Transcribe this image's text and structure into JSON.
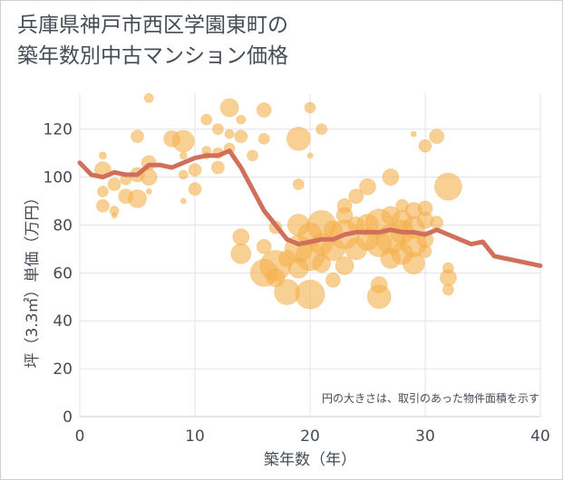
{
  "chart_data": {
    "type": "scatter",
    "title_lines": [
      "兵庫県神戸市西区学園東町の",
      "築年数別中古マンション価格"
    ],
    "xlabel": "築年数（年）",
    "ylabel": "坪（3.3㎡）単価（万円）",
    "annotation": "円の大きさは、取引のあった物件面積を示す",
    "xlim": [
      0,
      40
    ],
    "ylim": [
      0,
      135
    ],
    "xticks": [
      0,
      10,
      20,
      30,
      40
    ],
    "yticks": [
      0,
      20,
      40,
      60,
      80,
      100,
      120
    ],
    "grid": true,
    "colors": {
      "bubble": "#f5b04d",
      "trend": "#d0705a",
      "grid": "#dfe3ea",
      "text": "#444c55"
    },
    "trend_line": {
      "x": [
        0,
        1,
        2,
        3,
        4,
        5,
        6,
        7,
        8,
        9,
        10,
        11,
        12,
        13,
        14,
        15,
        16,
        17,
        18,
        19,
        20,
        21,
        22,
        23,
        24,
        25,
        26,
        27,
        28,
        29,
        30,
        31,
        32,
        33,
        34,
        35,
        36,
        37,
        38,
        39,
        40
      ],
      "y": [
        106,
        101,
        100,
        102,
        101,
        101,
        105,
        105,
        104,
        106,
        108,
        109,
        109,
        111,
        104,
        95,
        86,
        80,
        74,
        72,
        73,
        74,
        74,
        76,
        77,
        77,
        77,
        78,
        77,
        77,
        76,
        78,
        76,
        74,
        72,
        73,
        67,
        66,
        65,
        64,
        63
      ]
    },
    "bubbles": [
      {
        "x": 2,
        "y": 109,
        "s": 4
      },
      {
        "x": 2,
        "y": 103,
        "s": 9
      },
      {
        "x": 2,
        "y": 94,
        "s": 6
      },
      {
        "x": 2,
        "y": 88,
        "s": 7
      },
      {
        "x": 3,
        "y": 86,
        "s": 5
      },
      {
        "x": 3,
        "y": 97,
        "s": 7
      },
      {
        "x": 3,
        "y": 84,
        "s": 3
      },
      {
        "x": 4,
        "y": 92,
        "s": 8
      },
      {
        "x": 4,
        "y": 99,
        "s": 6
      },
      {
        "x": 5,
        "y": 117,
        "s": 7
      },
      {
        "x": 5,
        "y": 91,
        "s": 10
      },
      {
        "x": 5,
        "y": 101,
        "s": 8
      },
      {
        "x": 6,
        "y": 133,
        "s": 5
      },
      {
        "x": 6,
        "y": 106,
        "s": 8
      },
      {
        "x": 6,
        "y": 100,
        "s": 9
      },
      {
        "x": 6,
        "y": 94,
        "s": 3
      },
      {
        "x": 8,
        "y": 116,
        "s": 9
      },
      {
        "x": 9,
        "y": 115,
        "s": 12
      },
      {
        "x": 9,
        "y": 109,
        "s": 4
      },
      {
        "x": 9,
        "y": 101,
        "s": 5
      },
      {
        "x": 9,
        "y": 90,
        "s": 3
      },
      {
        "x": 10,
        "y": 103,
        "s": 7
      },
      {
        "x": 10,
        "y": 95,
        "s": 7
      },
      {
        "x": 11,
        "y": 124,
        "s": 6
      },
      {
        "x": 11,
        "y": 111,
        "s": 5
      },
      {
        "x": 11,
        "y": 109,
        "s": 4
      },
      {
        "x": 12,
        "y": 120,
        "s": 6
      },
      {
        "x": 12,
        "y": 110,
        "s": 6
      },
      {
        "x": 12,
        "y": 104,
        "s": 7
      },
      {
        "x": 13,
        "y": 129,
        "s": 10
      },
      {
        "x": 13,
        "y": 118,
        "s": 5
      },
      {
        "x": 13,
        "y": 112,
        "s": 6
      },
      {
        "x": 14,
        "y": 124,
        "s": 5
      },
      {
        "x": 14,
        "y": 117,
        "s": 7
      },
      {
        "x": 15,
        "y": 109,
        "s": 6
      },
      {
        "x": 16,
        "y": 128,
        "s": 8
      },
      {
        "x": 16,
        "y": 116,
        "s": 6
      },
      {
        "x": 14,
        "y": 75,
        "s": 9
      },
      {
        "x": 14,
        "y": 68,
        "s": 11
      },
      {
        "x": 16,
        "y": 60,
        "s": 15
      },
      {
        "x": 16,
        "y": 71,
        "s": 8
      },
      {
        "x": 17,
        "y": 63,
        "s": 17
      },
      {
        "x": 17,
        "y": 58,
        "s": 10
      },
      {
        "x": 17,
        "y": 79,
        "s": 7
      },
      {
        "x": 18,
        "y": 52,
        "s": 14
      },
      {
        "x": 18,
        "y": 66,
        "s": 9
      },
      {
        "x": 19,
        "y": 116,
        "s": 13
      },
      {
        "x": 19,
        "y": 97,
        "s": 6
      },
      {
        "x": 19,
        "y": 80,
        "s": 12
      },
      {
        "x": 19,
        "y": 70,
        "s": 15
      },
      {
        "x": 19,
        "y": 62,
        "s": 11
      },
      {
        "x": 20,
        "y": 129,
        "s": 6
      },
      {
        "x": 20,
        "y": 109,
        "s": 3
      },
      {
        "x": 20,
        "y": 76,
        "s": 13
      },
      {
        "x": 20,
        "y": 67,
        "s": 16
      },
      {
        "x": 20,
        "y": 51,
        "s": 16
      },
      {
        "x": 21,
        "y": 120,
        "s": 6
      },
      {
        "x": 21,
        "y": 80,
        "s": 16
      },
      {
        "x": 21,
        "y": 72,
        "s": 12
      },
      {
        "x": 21,
        "y": 64,
        "s": 10
      },
      {
        "x": 22,
        "y": 78,
        "s": 10
      },
      {
        "x": 22,
        "y": 70,
        "s": 13
      },
      {
        "x": 22,
        "y": 57,
        "s": 8
      },
      {
        "x": 23,
        "y": 88,
        "s": 8
      },
      {
        "x": 23,
        "y": 84,
        "s": 9
      },
      {
        "x": 23,
        "y": 76,
        "s": 16
      },
      {
        "x": 23,
        "y": 63,
        "s": 10
      },
      {
        "x": 24,
        "y": 92,
        "s": 8
      },
      {
        "x": 24,
        "y": 80,
        "s": 9
      },
      {
        "x": 24,
        "y": 70,
        "s": 12
      },
      {
        "x": 25,
        "y": 96,
        "s": 9
      },
      {
        "x": 25,
        "y": 80,
        "s": 12
      },
      {
        "x": 25,
        "y": 74,
        "s": 12
      },
      {
        "x": 26,
        "y": 81,
        "s": 15
      },
      {
        "x": 26,
        "y": 72,
        "s": 14
      },
      {
        "x": 26,
        "y": 55,
        "s": 9
      },
      {
        "x": 26,
        "y": 50,
        "s": 13
      },
      {
        "x": 27,
        "y": 100,
        "s": 9
      },
      {
        "x": 27,
        "y": 84,
        "s": 10
      },
      {
        "x": 27,
        "y": 74,
        "s": 16
      },
      {
        "x": 27,
        "y": 66,
        "s": 11
      },
      {
        "x": 28,
        "y": 88,
        "s": 7
      },
      {
        "x": 28,
        "y": 82,
        "s": 11
      },
      {
        "x": 28,
        "y": 77,
        "s": 13
      },
      {
        "x": 28,
        "y": 68,
        "s": 12
      },
      {
        "x": 29,
        "y": 118,
        "s": 3
      },
      {
        "x": 29,
        "y": 86,
        "s": 9
      },
      {
        "x": 29,
        "y": 79,
        "s": 12
      },
      {
        "x": 29,
        "y": 72,
        "s": 14
      },
      {
        "x": 29,
        "y": 64,
        "s": 12
      },
      {
        "x": 30,
        "y": 113,
        "s": 7
      },
      {
        "x": 30,
        "y": 87,
        "s": 8
      },
      {
        "x": 30,
        "y": 82,
        "s": 9
      },
      {
        "x": 30,
        "y": 74,
        "s": 9
      },
      {
        "x": 30,
        "y": 69,
        "s": 7
      },
      {
        "x": 31,
        "y": 117,
        "s": 8
      },
      {
        "x": 31,
        "y": 81,
        "s": 7
      },
      {
        "x": 32,
        "y": 96,
        "s": 15
      },
      {
        "x": 32,
        "y": 62,
        "s": 6
      },
      {
        "x": 32,
        "y": 58,
        "s": 9
      },
      {
        "x": 32,
        "y": 53,
        "s": 6
      }
    ]
  }
}
